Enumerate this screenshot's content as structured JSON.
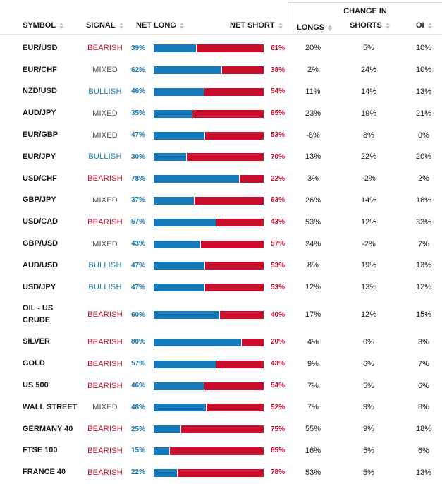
{
  "header": {
    "group_label": "CHANGE IN",
    "columns": {
      "symbol": "SYMBOL",
      "signal": "SIGNAL",
      "net_long": "NET LONG",
      "net_short": "NET SHORT",
      "longs": "LONGS",
      "shorts": "SHORTS",
      "oi": "OI"
    }
  },
  "colors": {
    "long": "#1779b9",
    "short": "#c8102e",
    "bullish": "#1779b9",
    "bearish": "#c8102e",
    "mixed": "#555555"
  },
  "rows": [
    {
      "symbol": "EUR/USD",
      "signal": "BEARISH",
      "net_long": 39,
      "net_short": 61,
      "longs": "20%",
      "shorts": "5%",
      "oi": "10%"
    },
    {
      "symbol": "EUR/CHF",
      "signal": "MIXED",
      "net_long": 62,
      "net_short": 38,
      "longs": "2%",
      "shorts": "24%",
      "oi": "10%"
    },
    {
      "symbol": "NZD/USD",
      "signal": "BULLISH",
      "net_long": 46,
      "net_short": 54,
      "longs": "11%",
      "shorts": "14%",
      "oi": "13%"
    },
    {
      "symbol": "AUD/JPY",
      "signal": "MIXED",
      "net_long": 35,
      "net_short": 65,
      "longs": "23%",
      "shorts": "19%",
      "oi": "21%"
    },
    {
      "symbol": "EUR/GBP",
      "signal": "MIXED",
      "net_long": 47,
      "net_short": 53,
      "longs": "-8%",
      "shorts": "8%",
      "oi": "0%"
    },
    {
      "symbol": "EUR/JPY",
      "signal": "BULLISH",
      "net_long": 30,
      "net_short": 70,
      "longs": "13%",
      "shorts": "22%",
      "oi": "20%"
    },
    {
      "symbol": "USD/CHF",
      "signal": "BEARISH",
      "net_long": 78,
      "net_short": 22,
      "longs": "3%",
      "shorts": "-2%",
      "oi": "2%"
    },
    {
      "symbol": "GBP/JPY",
      "signal": "MIXED",
      "net_long": 37,
      "net_short": 63,
      "longs": "26%",
      "shorts": "14%",
      "oi": "18%"
    },
    {
      "symbol": "USD/CAD",
      "signal": "BEARISH",
      "net_long": 57,
      "net_short": 43,
      "longs": "53%",
      "shorts": "12%",
      "oi": "33%"
    },
    {
      "symbol": "GBP/USD",
      "signal": "MIXED",
      "net_long": 43,
      "net_short": 57,
      "longs": "24%",
      "shorts": "-2%",
      "oi": "7%"
    },
    {
      "symbol": "AUD/USD",
      "signal": "BULLISH",
      "net_long": 47,
      "net_short": 53,
      "longs": "8%",
      "shorts": "19%",
      "oi": "13%"
    },
    {
      "symbol": "USD/JPY",
      "signal": "BULLISH",
      "net_long": 47,
      "net_short": 53,
      "longs": "12%",
      "shorts": "13%",
      "oi": "12%"
    },
    {
      "symbol": "OIL - US CRUDE",
      "signal": "BEARISH",
      "net_long": 60,
      "net_short": 40,
      "longs": "17%",
      "shorts": "12%",
      "oi": "15%"
    },
    {
      "symbol": "SILVER",
      "signal": "BEARISH",
      "net_long": 80,
      "net_short": 20,
      "longs": "4%",
      "shorts": "0%",
      "oi": "3%"
    },
    {
      "symbol": "GOLD",
      "signal": "BEARISH",
      "net_long": 57,
      "net_short": 43,
      "longs": "9%",
      "shorts": "6%",
      "oi": "7%"
    },
    {
      "symbol": "US 500",
      "signal": "BEARISH",
      "net_long": 46,
      "net_short": 54,
      "longs": "7%",
      "shorts": "5%",
      "oi": "6%"
    },
    {
      "symbol": "WALL STREET",
      "signal": "MIXED",
      "net_long": 48,
      "net_short": 52,
      "longs": "7%",
      "shorts": "9%",
      "oi": "8%"
    },
    {
      "symbol": "GERMANY 40",
      "signal": "BEARISH",
      "net_long": 25,
      "net_short": 75,
      "longs": "55%",
      "shorts": "9%",
      "oi": "18%"
    },
    {
      "symbol": "FTSE 100",
      "signal": "BEARISH",
      "net_long": 15,
      "net_short": 85,
      "longs": "16%",
      "shorts": "5%",
      "oi": "6%"
    },
    {
      "symbol": "FRANCE 40",
      "signal": "BEARISH",
      "net_long": 22,
      "net_short": 78,
      "longs": "53%",
      "shorts": "5%",
      "oi": "13%"
    }
  ]
}
